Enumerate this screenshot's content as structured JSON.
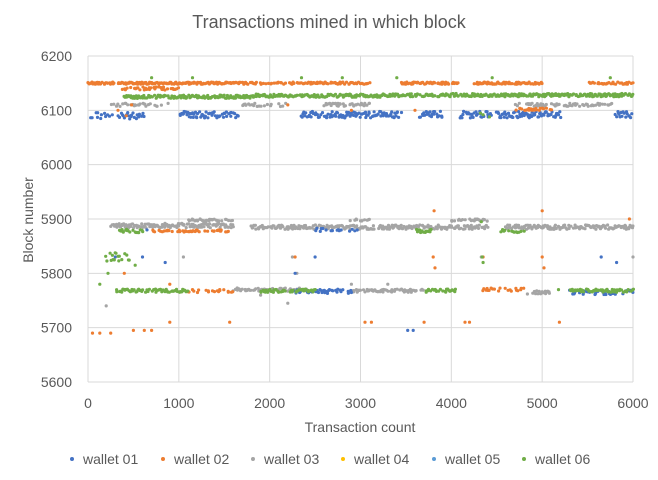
{
  "chart_data": {
    "type": "scatter",
    "title": "Transactions mined in which block",
    "xlabel": "Transaction count",
    "ylabel": "Block number",
    "xlim": [
      0,
      6000
    ],
    "ylim": [
      5600,
      6200
    ],
    "x_ticks": [
      0,
      1000,
      2000,
      3000,
      4000,
      5000,
      6000
    ],
    "y_ticks": [
      5600,
      5700,
      5800,
      5900,
      6000,
      6100,
      6200
    ],
    "grid": true,
    "legend_position": "bottom",
    "series": [
      {
        "name": "wallet 01",
        "color": "#4472C4",
        "bands": [
          {
            "x0": 30,
            "x1": 320,
            "y": 6090,
            "density": 0.6,
            "jitter": 6
          },
          {
            "x0": 330,
            "x1": 620,
            "y": 6090,
            "density": 0.6,
            "jitter": 6
          },
          {
            "x0": 1000,
            "x1": 1650,
            "y": 6092,
            "density": 0.9,
            "jitter": 6
          },
          {
            "x0": 2350,
            "x1": 3450,
            "y": 6092,
            "density": 0.9,
            "jitter": 6
          },
          {
            "x0": 3650,
            "x1": 3900,
            "y": 6092,
            "density": 0.9,
            "jitter": 6
          },
          {
            "x0": 4100,
            "x1": 4450,
            "y": 6092,
            "density": 0.9,
            "jitter": 6
          },
          {
            "x0": 4500,
            "x1": 5200,
            "y": 6092,
            "density": 0.9,
            "jitter": 6
          },
          {
            "x0": 5800,
            "x1": 6000,
            "y": 6092,
            "density": 0.7,
            "jitter": 6
          },
          {
            "x0": 2250,
            "x1": 2900,
            "y": 5767,
            "density": 0.6,
            "jitter": 4
          },
          {
            "x0": 5300,
            "x1": 6000,
            "y": 5765,
            "density": 0.6,
            "jitter": 4
          },
          {
            "x0": 2500,
            "x1": 3000,
            "y": 5880,
            "density": 0.3,
            "jitter": 3
          }
        ],
        "points": [
          [
            3520,
            5695
          ],
          [
            3580,
            5695
          ],
          [
            300,
            5830
          ],
          [
            600,
            5830
          ],
          [
            850,
            5820
          ],
          [
            2280,
            5800
          ],
          [
            2500,
            5830
          ],
          [
            5650,
            5830
          ],
          [
            5820,
            5820
          ],
          [
            650,
            5880
          ]
        ]
      },
      {
        "name": "wallet 02",
        "color": "#ED7D31",
        "bands": [
          {
            "x0": 0,
            "x1": 1850,
            "y": 6150,
            "density": 0.9,
            "jitter": 2
          },
          {
            "x0": 380,
            "x1": 1000,
            "y": 6140,
            "density": 0.5,
            "jitter": 3
          },
          {
            "x0": 1900,
            "x1": 2300,
            "y": 6150,
            "density": 0.7,
            "jitter": 2
          },
          {
            "x0": 2300,
            "x1": 3100,
            "y": 6150,
            "density": 0.7,
            "jitter": 2
          },
          {
            "x0": 3450,
            "x1": 4100,
            "y": 6150,
            "density": 0.8,
            "jitter": 2
          },
          {
            "x0": 4250,
            "x1": 5000,
            "y": 6150,
            "density": 0.8,
            "jitter": 2
          },
          {
            "x0": 5500,
            "x1": 6000,
            "y": 6150,
            "density": 0.5,
            "jitter": 2
          },
          {
            "x0": 700,
            "x1": 1600,
            "y": 5878,
            "density": 0.5,
            "jitter": 2
          },
          {
            "x0": 1100,
            "x1": 1600,
            "y": 5767,
            "density": 0.4,
            "jitter": 3
          },
          {
            "x0": 4300,
            "x1": 4800,
            "y": 5770,
            "density": 0.4,
            "jitter": 3
          },
          {
            "x0": 4700,
            "x1": 5100,
            "y": 6102,
            "density": 0.5,
            "jitter": 2
          }
        ],
        "points": [
          [
            50,
            5690
          ],
          [
            130,
            5690
          ],
          [
            250,
            5690
          ],
          [
            500,
            5695
          ],
          [
            620,
            5695
          ],
          [
            700,
            5695
          ],
          [
            900,
            5710
          ],
          [
            1560,
            5710
          ],
          [
            3050,
            5710
          ],
          [
            3120,
            5710
          ],
          [
            3700,
            5710
          ],
          [
            4150,
            5710
          ],
          [
            4200,
            5710
          ],
          [
            5190,
            5710
          ],
          [
            3810,
            5915
          ],
          [
            5000,
            5915
          ],
          [
            5960,
            5900
          ],
          [
            330,
            6100
          ],
          [
            420,
            6090
          ],
          [
            480,
            6110
          ],
          [
            2200,
            6110
          ],
          [
            2900,
            6100
          ],
          [
            3600,
            6100
          ],
          [
            4350,
            5830
          ],
          [
            5000,
            5830
          ],
          [
            5020,
            5810
          ],
          [
            3800,
            5830
          ],
          [
            3820,
            5810
          ],
          [
            2280,
            5830
          ],
          [
            400,
            5800
          ],
          [
            900,
            5780
          ],
          [
            1150,
            5770
          ],
          [
            1450,
            5770
          ]
        ]
      },
      {
        "name": "wallet 03",
        "color": "#A5A5A5",
        "bands": [
          {
            "x0": 250,
            "x1": 1600,
            "y": 5888,
            "density": 0.9,
            "jitter": 4
          },
          {
            "x0": 1800,
            "x1": 3150,
            "y": 5885,
            "density": 0.9,
            "jitter": 4
          },
          {
            "x0": 3200,
            "x1": 4400,
            "y": 5885,
            "density": 0.9,
            "jitter": 4
          },
          {
            "x0": 4600,
            "x1": 6000,
            "y": 5885,
            "density": 0.9,
            "jitter": 4
          },
          {
            "x0": 1100,
            "x1": 1600,
            "y": 5898,
            "density": 0.5,
            "jitter": 2
          },
          {
            "x0": 2850,
            "x1": 3100,
            "y": 5898,
            "density": 0.5,
            "jitter": 2
          },
          {
            "x0": 4000,
            "x1": 4400,
            "y": 5898,
            "density": 0.4,
            "jitter": 2
          },
          {
            "x0": 1600,
            "x1": 2400,
            "y": 5770,
            "density": 0.6,
            "jitter": 3
          },
          {
            "x0": 2900,
            "x1": 3700,
            "y": 5768,
            "density": 0.7,
            "jitter": 3
          },
          {
            "x0": 4800,
            "x1": 5100,
            "y": 5765,
            "density": 0.5,
            "jitter": 3
          },
          {
            "x0": 250,
            "x1": 900,
            "y": 6110,
            "density": 0.5,
            "jitter": 3
          },
          {
            "x0": 2600,
            "x1": 3100,
            "y": 6110,
            "density": 0.6,
            "jitter": 3
          },
          {
            "x0": 4700,
            "x1": 5800,
            "y": 6110,
            "density": 0.6,
            "jitter": 3
          },
          {
            "x0": 1700,
            "x1": 2200,
            "y": 6110,
            "density": 0.4,
            "jitter": 3
          }
        ],
        "points": [
          [
            200,
            5740
          ],
          [
            1900,
            5760
          ],
          [
            2200,
            5745
          ],
          [
            2300,
            5800
          ],
          [
            2900,
            5780
          ],
          [
            3300,
            5780
          ],
          [
            1050,
            5830
          ],
          [
            2250,
            5830
          ],
          [
            4330,
            5830
          ],
          [
            6000,
            5830
          ]
        ]
      },
      {
        "name": "wallet 04",
        "color": "#FFC000",
        "bands": [],
        "points": []
      },
      {
        "name": "wallet 05",
        "color": "#5B9BD5",
        "bands": [],
        "points": []
      },
      {
        "name": "wallet 06",
        "color": "#70AD47",
        "bands": [
          {
            "x0": 400,
            "x1": 1850,
            "y": 6125,
            "density": 0.9,
            "jitter": 3
          },
          {
            "x0": 1850,
            "x1": 3250,
            "y": 6127,
            "density": 0.9,
            "jitter": 3
          },
          {
            "x0": 3250,
            "x1": 4500,
            "y": 6128,
            "density": 0.9,
            "jitter": 3
          },
          {
            "x0": 4500,
            "x1": 6000,
            "y": 6128,
            "density": 0.9,
            "jitter": 3
          },
          {
            "x0": 300,
            "x1": 1100,
            "y": 5768,
            "density": 0.8,
            "jitter": 3
          },
          {
            "x0": 1900,
            "x1": 2500,
            "y": 5768,
            "density": 0.8,
            "jitter": 3
          },
          {
            "x0": 3700,
            "x1": 4050,
            "y": 5768,
            "density": 0.8,
            "jitter": 3
          },
          {
            "x0": 5300,
            "x1": 6000,
            "y": 5768,
            "density": 0.8,
            "jitter": 3
          },
          {
            "x0": 350,
            "x1": 600,
            "y": 5878,
            "density": 0.7,
            "jitter": 3
          },
          {
            "x0": 3600,
            "x1": 3800,
            "y": 5878,
            "density": 0.7,
            "jitter": 3
          },
          {
            "x0": 4550,
            "x1": 4800,
            "y": 5878,
            "density": 0.6,
            "jitter": 3
          },
          {
            "x0": 200,
            "x1": 450,
            "y": 5830,
            "density": 0.6,
            "jitter": 8
          }
        ],
        "points": [
          [
            700,
            6160
          ],
          [
            1150,
            6160
          ],
          [
            2350,
            6160
          ],
          [
            2800,
            6160
          ],
          [
            3400,
            6160
          ],
          [
            4450,
            6160
          ],
          [
            5750,
            6160
          ],
          [
            4320,
            6095
          ],
          [
            4350,
            6092
          ],
          [
            4420,
            6088
          ],
          [
            4330,
            5895
          ],
          [
            4340,
            5830
          ],
          [
            4350,
            5820
          ],
          [
            130,
            5780
          ],
          [
            220,
            5800
          ],
          [
            520,
            5815
          ],
          [
            5180,
            5770
          ]
        ]
      }
    ]
  }
}
